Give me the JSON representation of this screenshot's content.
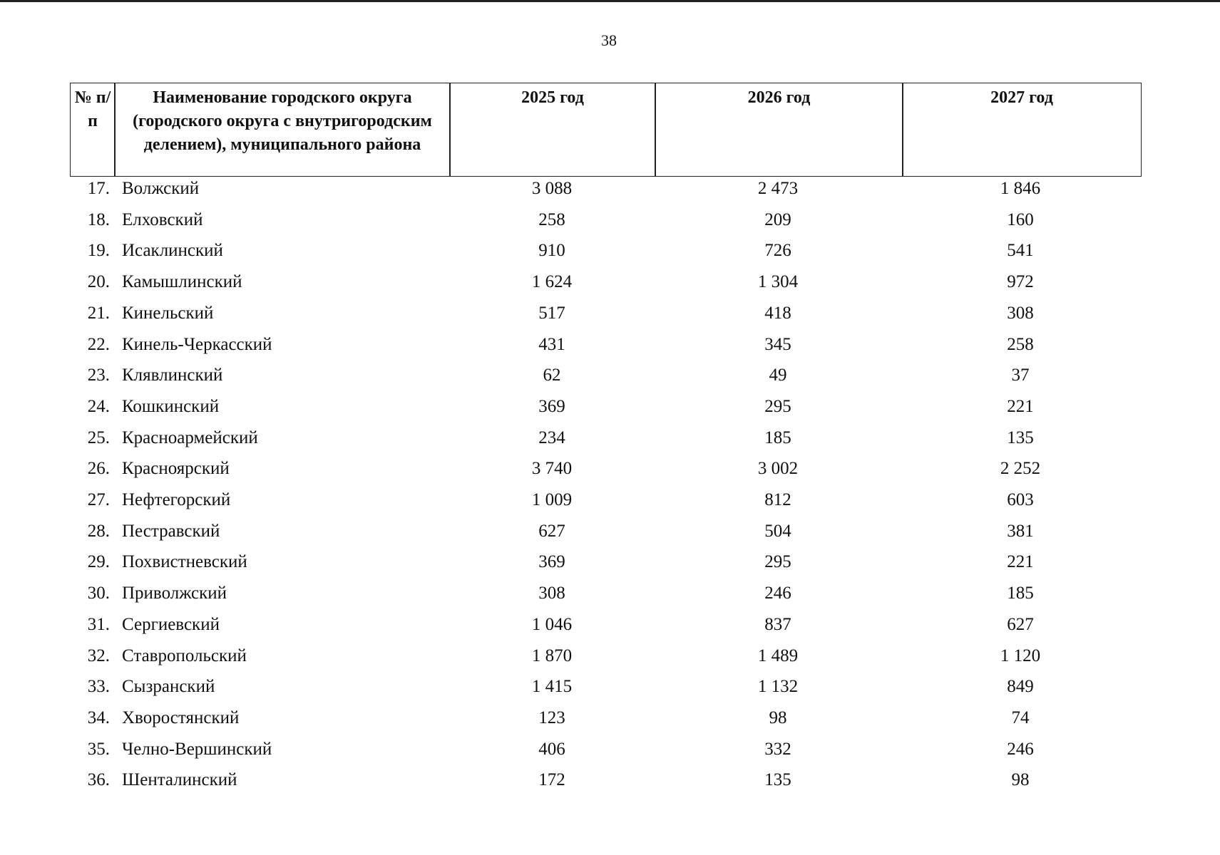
{
  "page_number": "38",
  "table": {
    "header": [
      "№ п/п",
      "Наименование городского округа (городского округа с внутригородским делением), муниципального района",
      "2025 год",
      "2026 год",
      "2027 год"
    ],
    "rows": [
      [
        "17.",
        "Волжский",
        "3 088",
        "2 473",
        "1 846"
      ],
      [
        "18.",
        "Елховский",
        "258",
        "209",
        "160"
      ],
      [
        "19.",
        "Исаклинский",
        "910",
        "726",
        "541"
      ],
      [
        "20.",
        "Камышлинский",
        "1 624",
        "1 304",
        "972"
      ],
      [
        "21.",
        "Кинельский",
        "517",
        "418",
        "308"
      ],
      [
        "22.",
        "Кинель-Черкасский",
        "431",
        "345",
        "258"
      ],
      [
        "23.",
        "Клявлинский",
        "62",
        "49",
        "37"
      ],
      [
        "24.",
        "Кошкинский",
        "369",
        "295",
        "221"
      ],
      [
        "25.",
        "Красноармейский",
        "234",
        "185",
        "135"
      ],
      [
        "26.",
        "Красноярский",
        "3 740",
        "3 002",
        "2 252"
      ],
      [
        "27.",
        "Нефтегорский",
        "1 009",
        "812",
        "603"
      ],
      [
        "28.",
        "Пестравский",
        "627",
        "504",
        "381"
      ],
      [
        "29.",
        "Похвистневский",
        "369",
        "295",
        "221"
      ],
      [
        "30.",
        "Приволжский",
        "308",
        "246",
        "185"
      ],
      [
        "31.",
        "Сергиевский",
        "1 046",
        "837",
        "627"
      ],
      [
        "32.",
        "Ставропольский",
        "1 870",
        "1 489",
        "1 120"
      ],
      [
        "33.",
        "Сызранский",
        "1 415",
        "1 132",
        "849"
      ],
      [
        "34.",
        "Хворостянский",
        "123",
        "98",
        "74"
      ],
      [
        "35.",
        "Челно-Вершинский",
        "406",
        "332",
        "246"
      ],
      [
        "36.",
        "Шенталинский",
        "172",
        "135",
        "98"
      ]
    ]
  }
}
